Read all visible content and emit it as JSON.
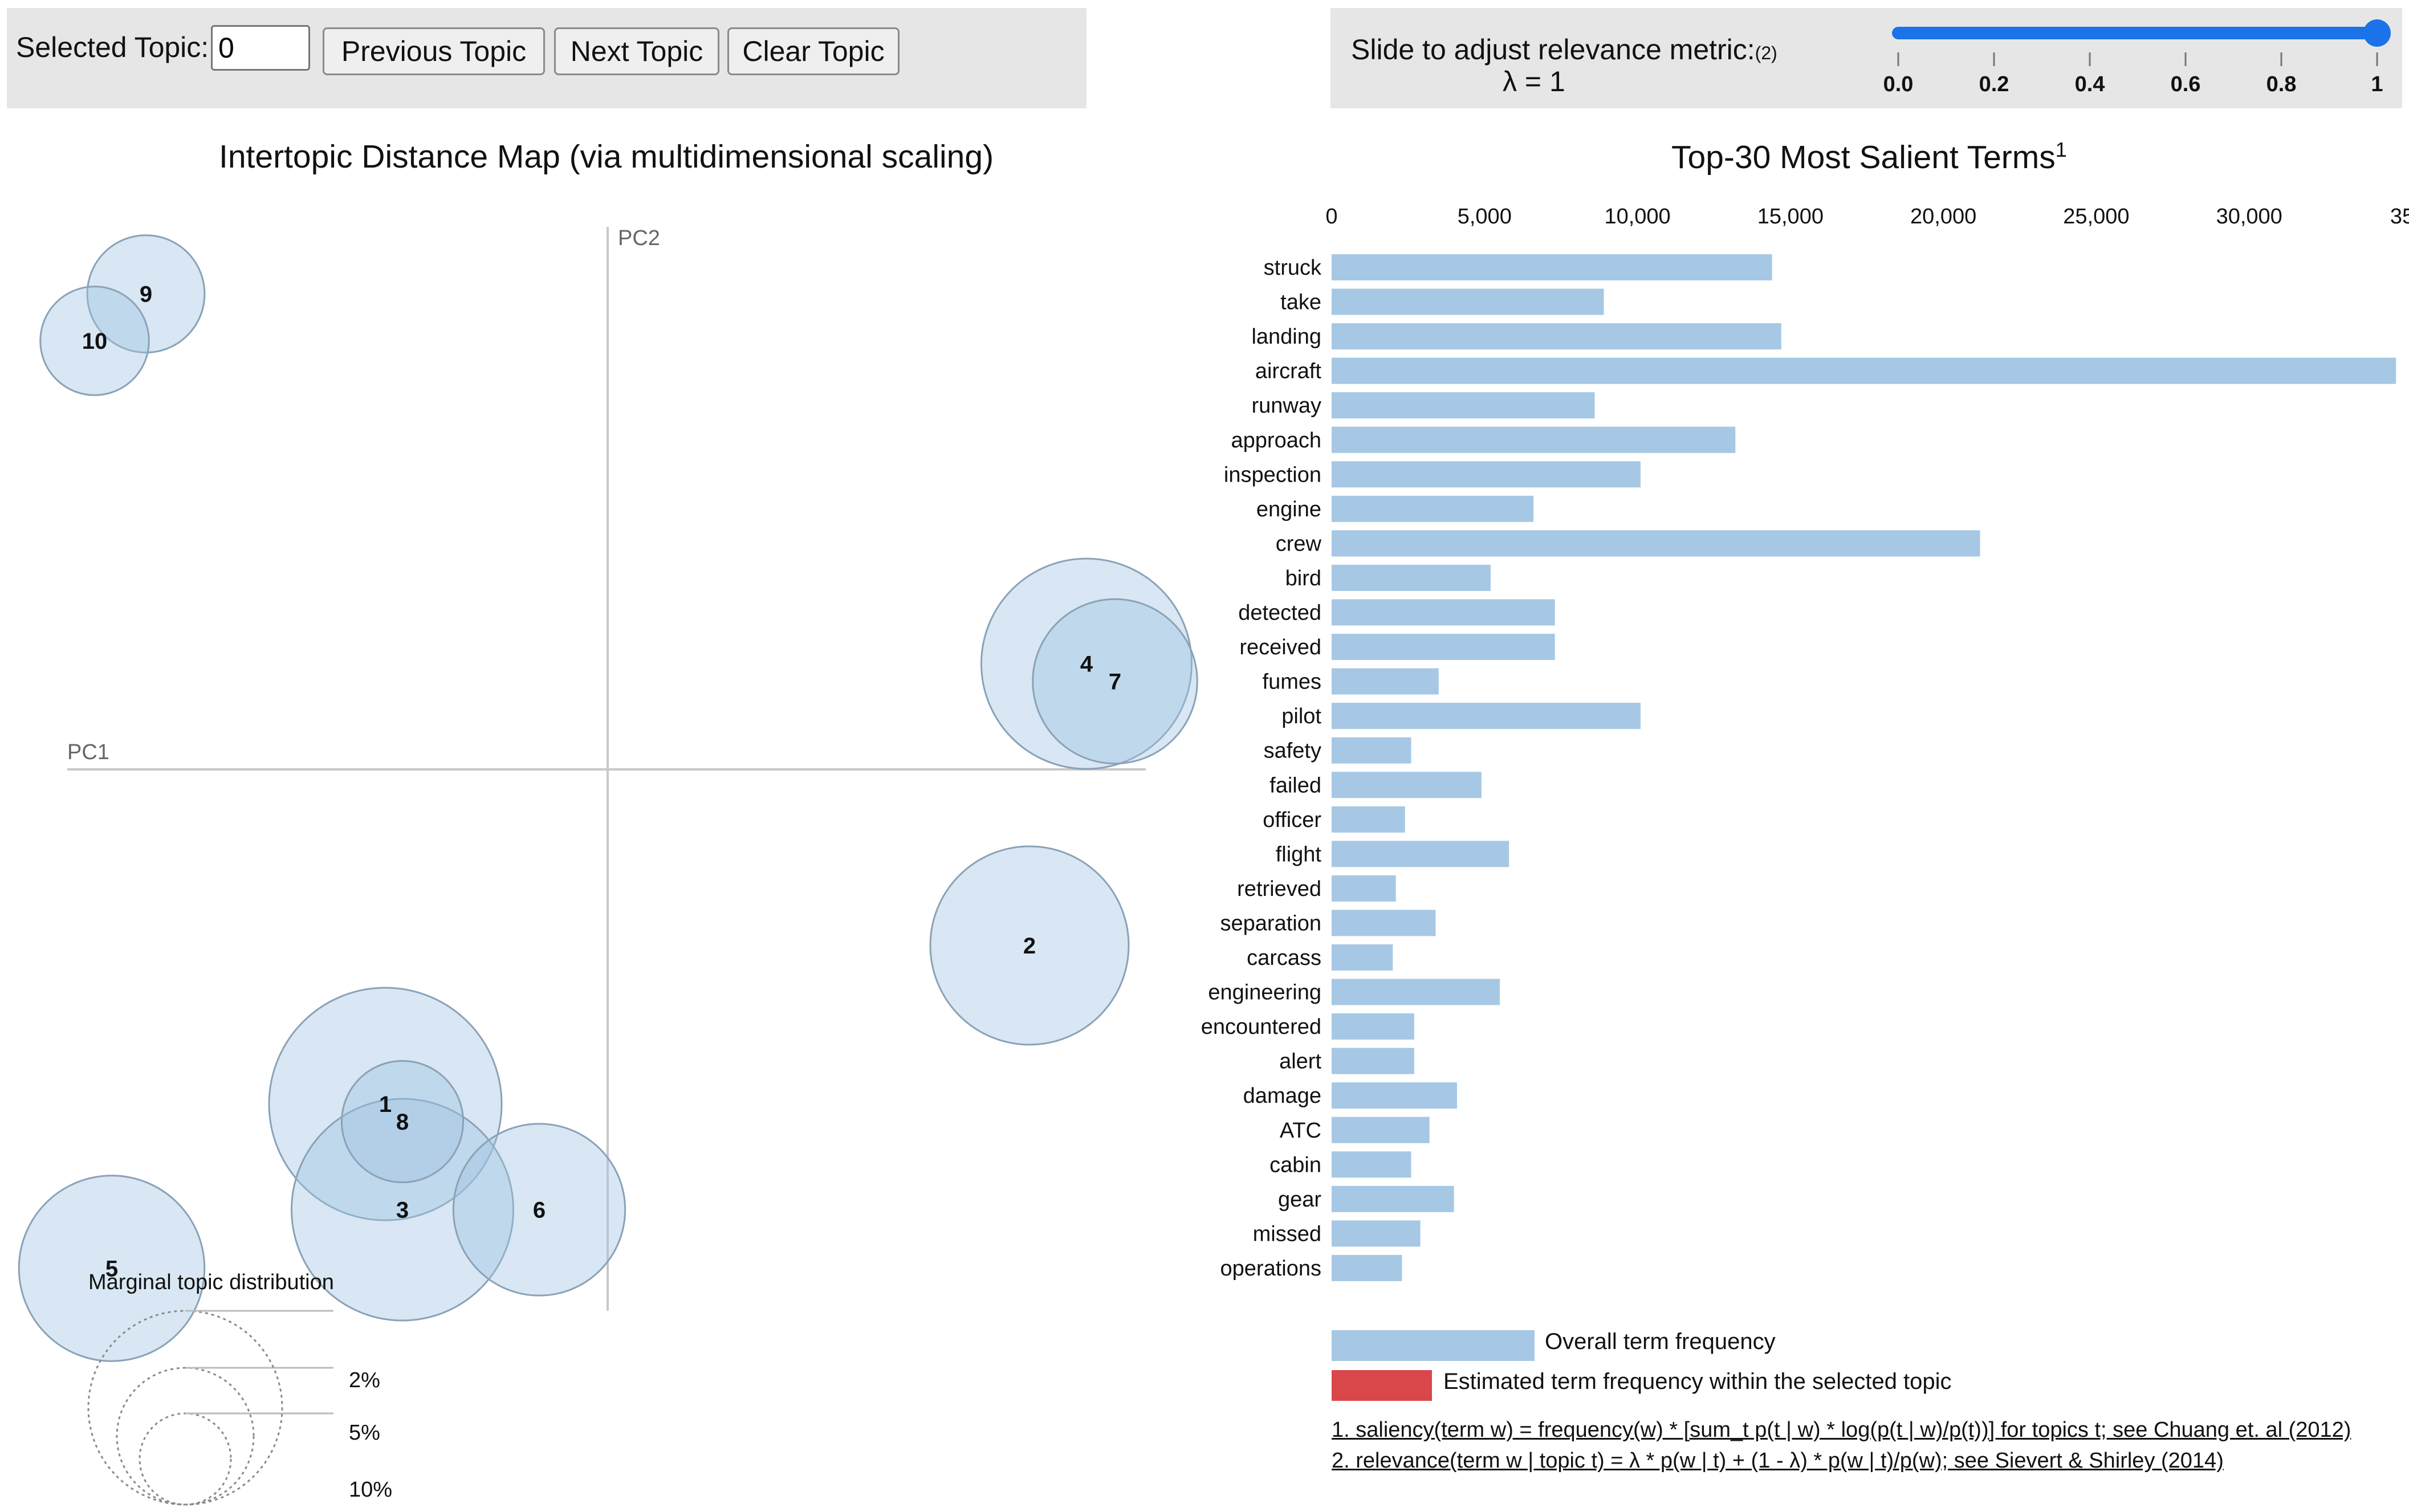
{
  "controls": {
    "selected_topic_label": "Selected Topic:",
    "selected_topic_value": "0",
    "prev_label": "Previous Topic",
    "next_label": "Next Topic",
    "clear_label": "Clear Topic"
  },
  "relevance": {
    "label": "Slide to adjust relevance metric:",
    "footnote_ref": "(2)",
    "lambda_text": "λ = 1",
    "value": 1,
    "ticks": [
      "0.0",
      "0.2",
      "0.4",
      "0.6",
      "0.8",
      "1"
    ]
  },
  "colors": {
    "circle_fill": "#9ec3e0",
    "circle_stroke": "#8aa2b8",
    "bar": "#a6c8e4",
    "topic_bar": "#d9474b",
    "slider": "#1a73e8"
  },
  "chart_data": [
    {
      "type": "scatter",
      "title": "Intertopic Distance Map (via multidimensional scaling)",
      "xlabel": "PC1",
      "ylabel": "PC2",
      "xlim": [
        -1,
        1
      ],
      "ylim": [
        -1,
        1
      ],
      "topics": [
        {
          "id": "1",
          "x": -0.39,
          "y": -0.57,
          "size": 0.11
        },
        {
          "id": "2",
          "x": 0.74,
          "y": -0.3,
          "size": 0.08
        },
        {
          "id": "3",
          "x": -0.36,
          "y": -0.75,
          "size": 0.1
        },
        {
          "id": "4",
          "x": 0.84,
          "y": 0.18,
          "size": 0.09
        },
        {
          "id": "5",
          "x": -0.87,
          "y": -0.85,
          "size": 0.07
        },
        {
          "id": "6",
          "x": -0.12,
          "y": -0.75,
          "size": 0.06
        },
        {
          "id": "7",
          "x": 0.89,
          "y": 0.15,
          "size": 0.055
        },
        {
          "id": "8",
          "x": -0.36,
          "y": -0.6,
          "size": 0.03
        },
        {
          "id": "9",
          "x": -0.81,
          "y": 0.81,
          "size": 0.028
        },
        {
          "id": "10",
          "x": -0.9,
          "y": 0.73,
          "size": 0.024
        }
      ],
      "size_legend": {
        "title": "Marginal topic distribution",
        "labels": [
          "2%",
          "5%",
          "10%"
        ]
      }
    },
    {
      "type": "bar",
      "title": "Top-30 Most Salient Terms",
      "title_sup": "1",
      "orientation": "horizontal",
      "xlim": [
        0,
        35000
      ],
      "xticks": [
        "0",
        "5,000",
        "10,000",
        "15,000",
        "20,000",
        "25,000",
        "30,000",
        "35"
      ],
      "categories": [
        "struck",
        "take",
        "landing",
        "aircraft",
        "runway",
        "approach",
        "inspection",
        "engine",
        "crew",
        "bird",
        "detected",
        "received",
        "fumes",
        "pilot",
        "safety",
        "failed",
        "officer",
        "flight",
        "retrieved",
        "separation",
        "carcass",
        "engineering",
        "encountered",
        "alert",
        "damage",
        "ATC",
        "cabin",
        "gear",
        "missed",
        "operations"
      ],
      "values": [
        14400,
        8900,
        14700,
        34800,
        8600,
        13200,
        10100,
        6600,
        21200,
        5200,
        7300,
        7300,
        3500,
        10100,
        2600,
        4900,
        2400,
        5800,
        2100,
        3400,
        2000,
        5500,
        2700,
        2700,
        4100,
        3200,
        2600,
        4000,
        2900,
        2300
      ],
      "legend": [
        "Overall term frequency",
        "Estimated term frequency within the selected topic"
      ]
    }
  ],
  "footnotes": [
    "1. saliency(term w) = frequency(w) * [sum_t p(t | w) * log(p(t | w)/p(t))] for topics t; see Chuang et. al (2012)",
    "2. relevance(term w | topic t) = λ * p(w | t) + (1 - λ) * p(w | t)/p(w); see Sievert & Shirley (2014)"
  ]
}
